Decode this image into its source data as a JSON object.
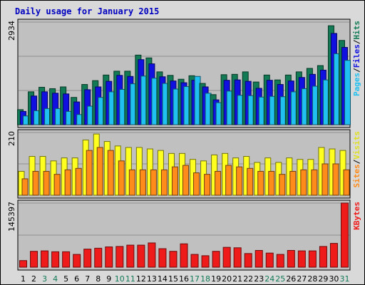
{
  "chart_data": {
    "type": "bar",
    "title": "Daily usage for January 2015",
    "categories": [
      "1",
      "2",
      "3",
      "4",
      "5",
      "6",
      "7",
      "8",
      "9",
      "10",
      "11",
      "12",
      "13",
      "14",
      "15",
      "16",
      "17",
      "18",
      "19",
      "20",
      "21",
      "22",
      "23",
      "24",
      "25",
      "26",
      "27",
      "28",
      "29",
      "30",
      "31"
    ],
    "weekend_days": [
      "3",
      "4",
      "10",
      "11",
      "17",
      "18",
      "24",
      "25",
      "31"
    ],
    "panels": [
      {
        "id": "hits",
        "ylim": [
          0,
          2934
        ],
        "max_label": "2934",
        "legend": [
          "Pages",
          "/",
          "Files",
          "/",
          "Hits"
        ],
        "series": [
          {
            "name": "Hits",
            "color": "#127a55",
            "values": [
              430,
              940,
              1070,
              1030,
              1080,
              780,
              1150,
              1260,
              1420,
              1530,
              1530,
              1990,
              1910,
              1510,
              1410,
              1300,
              1400,
              1180,
              860,
              1430,
              1440,
              1510,
              1220,
              1420,
              1280,
              1420,
              1510,
              1610,
              1690,
              2830,
              2410
            ]
          },
          {
            "name": "Files",
            "color": "#1010e0",
            "values": [
              380,
              820,
              940,
              900,
              880,
              650,
              1000,
              1080,
              1240,
              1410,
              1380,
              1860,
              1740,
              1370,
              1250,
              1200,
              1270,
              1080,
              710,
              1270,
              1280,
              1240,
              1040,
              1270,
              1150,
              1250,
              1350,
              1440,
              1560,
              2610,
              2210
            ]
          },
          {
            "name": "Pages",
            "color": "#20c0f0",
            "values": [
              250,
              400,
              460,
              460,
              380,
              290,
              530,
              780,
              940,
              1010,
              1170,
              1390,
              1330,
              1180,
              1020,
              1090,
              1380,
              900,
              630,
              960,
              840,
              830,
              790,
              810,
              800,
              940,
              1030,
              1100,
              1280,
              2030,
              1840
            ]
          }
        ]
      },
      {
        "id": "visits",
        "ylim": [
          0,
          210
        ],
        "max_label": "210",
        "legend": [
          "Sites",
          "/",
          "Visits"
        ],
        "series": [
          {
            "name": "Visits",
            "color": "#ffff20",
            "values": [
              80,
              130,
              130,
              115,
              125,
              125,
              185,
              205,
              180,
              165,
              160,
              160,
              155,
              150,
              140,
              140,
              120,
              115,
              135,
              140,
              125,
              130,
              110,
              125,
              110,
              125,
              120,
              120,
              160,
              155,
              150
            ]
          },
          {
            "name": "Sites",
            "color": "#ff8c1a",
            "values": [
              55,
              80,
              80,
              70,
              85,
              90,
              150,
              160,
              150,
              115,
              85,
              85,
              85,
              85,
              95,
              100,
              75,
              70,
              80,
              100,
              95,
              90,
              80,
              80,
              70,
              80,
              85,
              85,
              105,
              105,
              85
            ]
          }
        ]
      },
      {
        "id": "kbytes",
        "ylim": [
          0,
          145397
        ],
        "max_label": "145397",
        "legend": [
          "KBytes"
        ],
        "series": [
          {
            "name": "KBytes",
            "color": "#ef1a1a",
            "values": [
              15000,
              36000,
              37000,
              35000,
              35000,
              29000,
              41000,
              43000,
              46000,
              47000,
              50000,
              50000,
              55000,
              42000,
              36000,
              53000,
              29000,
              26000,
              36000,
              45000,
              44000,
              31000,
              38000,
              32000,
              29000,
              38000,
              37000,
              37000,
              47000,
              54000,
              145397
            ]
          }
        ]
      }
    ],
    "colors": {
      "plot_bg": "#c0c0c0",
      "frame_bg": "#d9d9d9",
      "gridline": "#909090",
      "title": "#0000c0",
      "weekday_label": "#000000",
      "weekend_label": "#127a55"
    }
  }
}
